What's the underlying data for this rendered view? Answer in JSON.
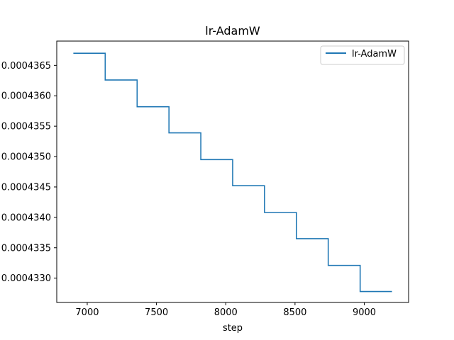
{
  "chart_data": {
    "type": "line",
    "title": "lr-AdamW",
    "xlabel": "step",
    "ylabel": "",
    "xlim": [
      6780,
      9320
    ],
    "ylim": [
      0.0004326,
      0.0004369
    ],
    "x_ticks": [
      7000,
      7500,
      8000,
      8500,
      9000
    ],
    "y_ticks": [
      0.000433,
      0.0004335,
      0.000434,
      0.0004345,
      0.000435,
      0.0004355,
      0.000436,
      0.0004365
    ],
    "x_tick_labels": [
      "7000",
      "7500",
      "8000",
      "8500",
      "9000"
    ],
    "y_tick_labels": [
      "0.0004330",
      "0.0004335",
      "0.0004340",
      "0.0004345",
      "0.0004350",
      "0.0004355",
      "0.0004360",
      "0.0004365"
    ],
    "grid": false,
    "legend_position": "top-right",
    "series": [
      {
        "name": "lr-AdamW",
        "color": "#1f77b4",
        "step_style": "post",
        "x": [
          6900,
          7130,
          7360,
          7590,
          7820,
          8050,
          8280,
          8510,
          8740,
          8970,
          9200
        ],
        "y": [
          0.0004367,
          0.00043626,
          0.00043582,
          0.00043539,
          0.00043495,
          0.00043452,
          0.00043408,
          0.00043365,
          0.00043321,
          0.00043278,
          0.00043278
        ]
      }
    ]
  }
}
